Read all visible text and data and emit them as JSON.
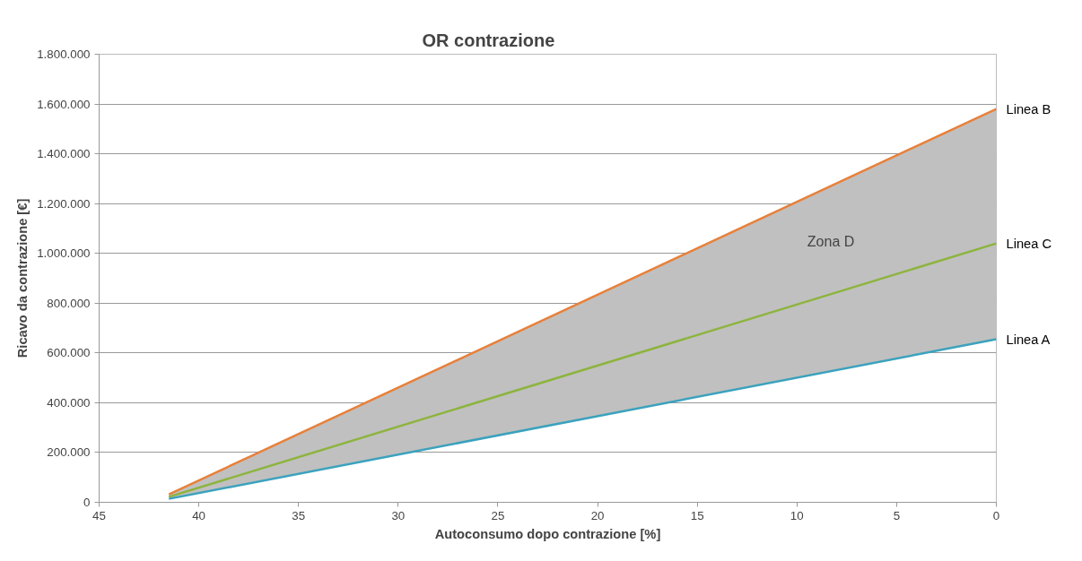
{
  "chart_data": {
    "type": "line",
    "title": "OR contrazione",
    "xlabel": "Autoconsumo dopo contrazione [%]",
    "ylabel": "Ricavo da contrazione [€]",
    "x": [
      41.5,
      0
    ],
    "series": [
      {
        "name": "Linea B",
        "color": "#e8803a",
        "values": [
          32000,
          1580000
        ]
      },
      {
        "name": "Linea C",
        "color": "#8db43e",
        "values": [
          22000,
          1040000
        ],
        "lower": [
          14000,
          655000
        ],
        "upper": [
          32000,
          1580000
        ]
      },
      {
        "name": "Linea A",
        "color": "#3ba2bd",
        "values": [
          14000,
          655000
        ]
      }
    ],
    "annotations": [
      "Zona D"
    ],
    "xlim": [
      45,
      0
    ],
    "xticks": [
      45,
      40,
      35,
      30,
      25,
      20,
      15,
      10,
      5,
      0
    ],
    "ylim": [
      0,
      1800000
    ],
    "yticks": [
      {
        "value": 0,
        "label": "0"
      },
      {
        "value": 200000,
        "label": "200.000"
      },
      {
        "value": 400000,
        "label": "400.000"
      },
      {
        "value": 600000,
        "label": "600.000"
      },
      {
        "value": 800000,
        "label": "800.000"
      },
      {
        "value": 1000000,
        "label": "1.000.000"
      },
      {
        "value": 1200000,
        "label": "1.200.000"
      },
      {
        "value": 1400000,
        "label": "1.400.000"
      },
      {
        "value": 1600000,
        "label": "1.600.000"
      },
      {
        "value": 1800000,
        "label": "1.800.000"
      }
    ],
    "grid": "y",
    "legend": false,
    "marker": "none",
    "line_style": "solid"
  }
}
